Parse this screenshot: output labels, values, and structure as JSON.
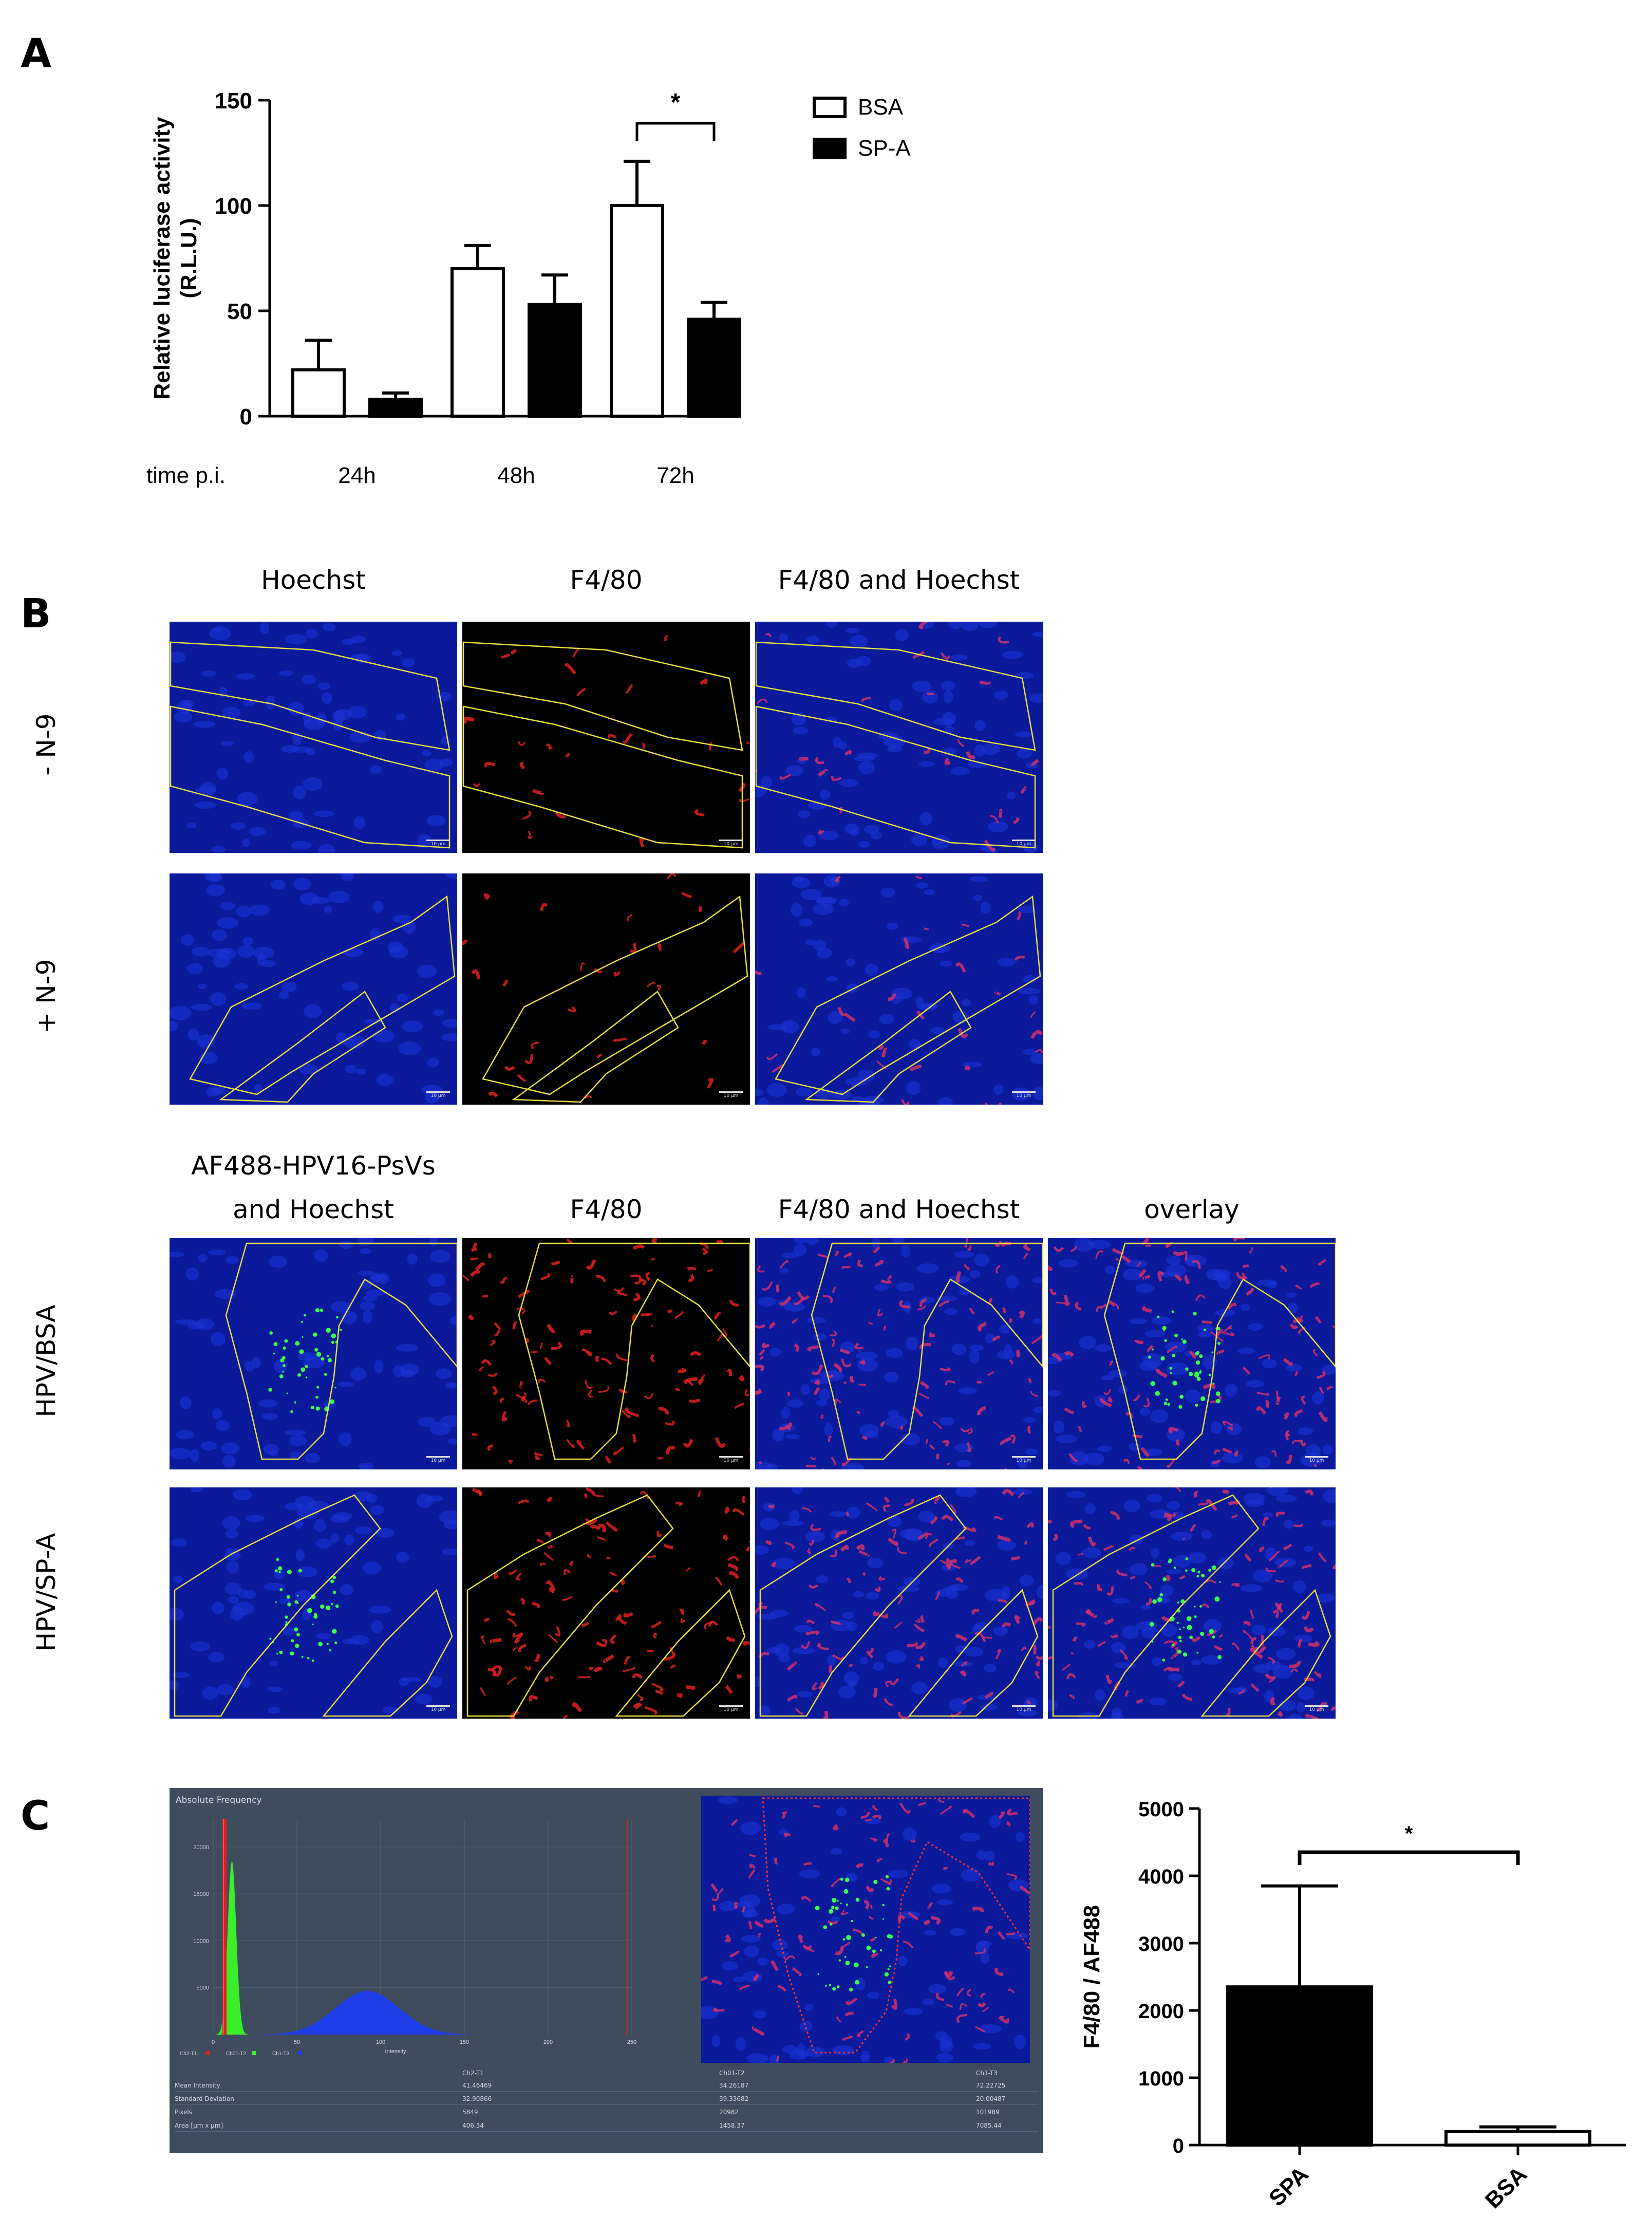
{
  "panels": {
    "a": "A",
    "b": "B",
    "c": "C"
  },
  "chart_a": {
    "type": "bar",
    "categories": [
      "24h",
      "48h",
      "72h"
    ],
    "category_axis_label": "time p.i.",
    "ylabel_line1": "Relative luciferase activity",
    "ylabel_line2": "(R.L.U.)",
    "ylim": [
      0,
      150
    ],
    "yticks": [
      "0",
      "50",
      "100",
      "150"
    ],
    "series": [
      {
        "name": "BSA",
        "values": [
          22,
          70,
          100
        ],
        "errors": [
          14,
          11,
          21
        ],
        "fill": "#ffffff"
      },
      {
        "name": "SP-A",
        "values": [
          8,
          53,
          46
        ],
        "errors": [
          3,
          14,
          8
        ],
        "fill": "#000000"
      }
    ],
    "significance": {
      "between": "72h",
      "label": "*"
    }
  },
  "b_top": {
    "columns": [
      "Hoechst",
      "F4/80",
      "F4/80 and Hoechst"
    ],
    "rows": [
      "- N-9",
      "+ N-9"
    ]
  },
  "b_bottom": {
    "columns": [
      "AF488-HPV16-PsVs",
      "and Hoechst",
      "F4/80",
      "F4/80 and Hoechst",
      "overlay"
    ],
    "rows": [
      "HPV/BSA",
      "HPV/SP-A"
    ]
  },
  "scale_label": "10 µm",
  "histogram": {
    "title": "Absolute Frequency",
    "xlabel": "Intensity",
    "yticks": [
      "20000",
      "15000",
      "10000",
      "5000"
    ],
    "xticks": [
      "0",
      "50",
      "100",
      "150",
      "200",
      "250"
    ],
    "legend": [
      "Ch2-T1",
      "Ch01-T2",
      "Ch1-T3"
    ],
    "table": {
      "headers": [
        "Ch2-T1",
        "Ch01-T2",
        "Ch1-T3"
      ],
      "rows": [
        {
          "label": "Mean Intensity",
          "values": [
            "41.46469",
            "34.26187",
            "72.22725"
          ]
        },
        {
          "label": "Standard Deviation",
          "values": [
            "32.90866",
            "39.33682",
            "20.00487"
          ]
        },
        {
          "label": "Pixels",
          "values": [
            "5849",
            "20982",
            "101989"
          ]
        },
        {
          "label": "Area [µm x µm]",
          "values": [
            "406.34",
            "1458.37",
            "7085.44"
          ]
        }
      ]
    }
  },
  "chart_c": {
    "type": "bar",
    "categories": [
      "SPA",
      "BSA"
    ],
    "values": [
      2350,
      200
    ],
    "errors": [
      1500,
      70
    ],
    "fills": [
      "#000000",
      "#ffffff"
    ],
    "ylabel": "F4/80 / AF488",
    "ylim": [
      0,
      5000
    ],
    "yticks": [
      "0",
      "1000",
      "2000",
      "3000",
      "4000",
      "5000"
    ],
    "significance": "*"
  }
}
